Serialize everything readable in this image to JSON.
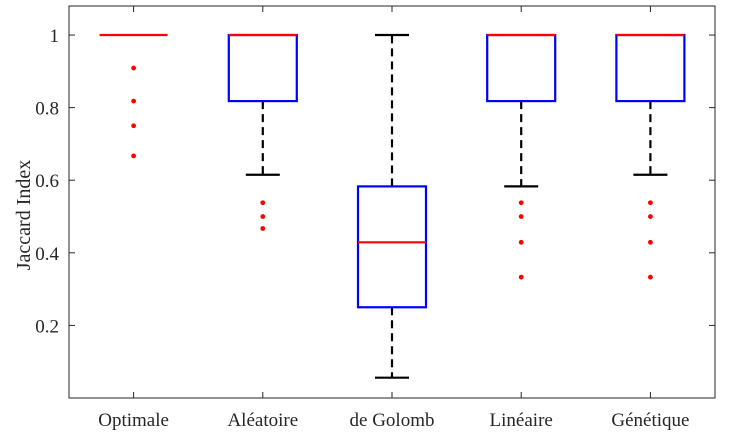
{
  "chart_data": {
    "type": "box",
    "title": "",
    "xlabel": "",
    "ylabel": "Jaccard Index",
    "ylim": [
      0,
      1.08
    ],
    "yticks": [
      0.2,
      0.4,
      0.6,
      0.8,
      1
    ],
    "ytick_labels": [
      "0.2",
      "0.4",
      "0.6",
      "0.8",
      "1"
    ],
    "categories": [
      "Optimale",
      "Aléatoire",
      "de Golomb",
      "Linéaire",
      "Génétique"
    ],
    "boxes": [
      {
        "category": "Optimale",
        "q1": 1.0,
        "median": 1.0,
        "q3": 1.0,
        "whisker_low": 1.0,
        "whisker_high": 1.0,
        "outliers": [
          0.909,
          0.818,
          0.75,
          0.667
        ]
      },
      {
        "category": "Aléatoire",
        "q1": 0.818,
        "median": 1.0,
        "q3": 1.0,
        "whisker_low": 0.615,
        "whisker_high": 1.0,
        "outliers": [
          0.538,
          0.5,
          0.467
        ]
      },
      {
        "category": "de Golomb",
        "q1": 0.25,
        "median": 0.429,
        "q3": 0.583,
        "whisker_low": 0.056,
        "whisker_high": 1.0,
        "outliers": []
      },
      {
        "category": "Linéaire",
        "q1": 0.818,
        "median": 1.0,
        "q3": 1.0,
        "whisker_low": 0.583,
        "whisker_high": 1.0,
        "outliers": [
          0.538,
          0.5,
          0.429,
          0.333
        ]
      },
      {
        "category": "Génétique",
        "q1": 0.818,
        "median": 1.0,
        "q3": 1.0,
        "whisker_low": 0.615,
        "whisker_high": 1.0,
        "outliers": [
          0.538,
          0.5,
          0.429,
          0.333
        ]
      }
    ],
    "colors": {
      "box": "#0000ff",
      "median": "#ff0000",
      "whisker": "#000000",
      "outlier": "#ff0000",
      "axis": "#262626"
    },
    "grid": false
  }
}
